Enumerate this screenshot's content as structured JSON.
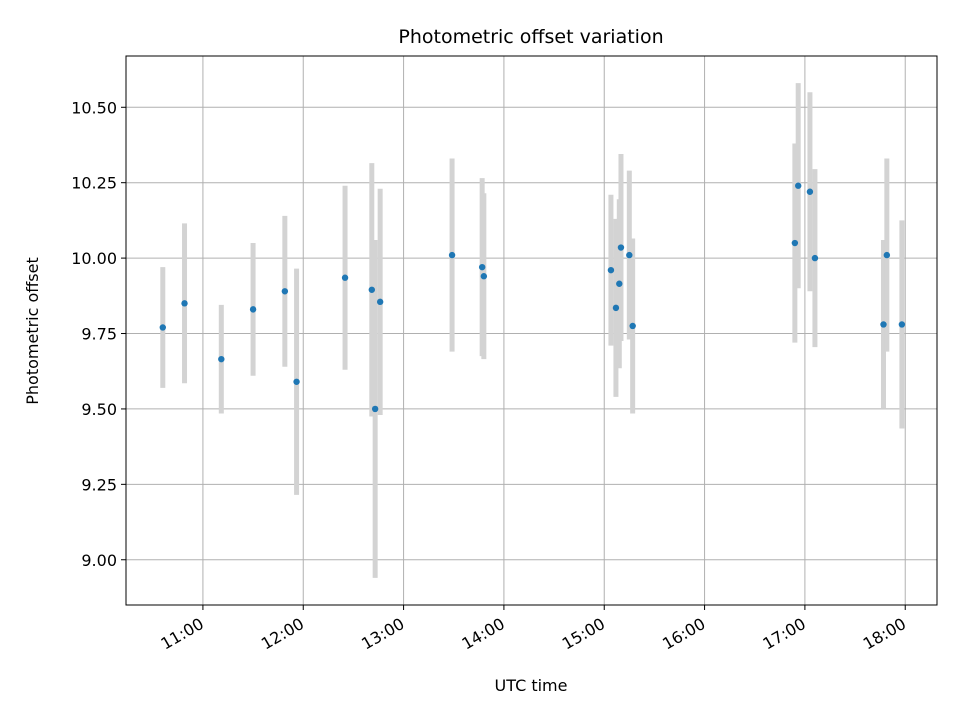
{
  "chart_data": {
    "type": "scatter",
    "title": "Photometric offset variation",
    "xlabel": "UTC time",
    "ylabel": "Photometric offset",
    "xlim": [
      "10:14",
      "18:19"
    ],
    "ylim": [
      8.85,
      10.67
    ],
    "x_ticks": [
      "11:00",
      "12:00",
      "13:00",
      "14:00",
      "15:00",
      "16:00",
      "17:00",
      "18:00"
    ],
    "y_ticks": [
      9.0,
      9.25,
      9.5,
      9.75,
      10.0,
      10.25,
      10.5
    ],
    "y_tick_labels": [
      "9.00",
      "9.25",
      "9.50",
      "9.75",
      "10.00",
      "10.25",
      "10.50"
    ],
    "grid": true,
    "colors": {
      "point": "#1f77b4",
      "errorbar": "#d3d3d3",
      "grid": "#b0b0b0"
    },
    "points": [
      {
        "x": "10:36",
        "y": 9.77,
        "err": 0.2
      },
      {
        "x": "10:49",
        "y": 9.85,
        "err": 0.265
      },
      {
        "x": "11:11",
        "y": 9.665,
        "err": 0.18
      },
      {
        "x": "11:30",
        "y": 9.83,
        "err": 0.22
      },
      {
        "x": "11:49",
        "y": 9.89,
        "err": 0.25
      },
      {
        "x": "11:56",
        "y": 9.59,
        "err": 0.375
      },
      {
        "x": "12:25",
        "y": 9.935,
        "err": 0.305
      },
      {
        "x": "12:41",
        "y": 9.895,
        "err": 0.42
      },
      {
        "x": "12:43",
        "y": 9.5,
        "err": 0.56
      },
      {
        "x": "12:46",
        "y": 9.855,
        "err": 0.375
      },
      {
        "x": "13:29",
        "y": 10.01,
        "err": 0.32
      },
      {
        "x": "13:47",
        "y": 9.97,
        "err": 0.295
      },
      {
        "x": "13:48",
        "y": 9.94,
        "err": 0.275
      },
      {
        "x": "15:04",
        "y": 9.96,
        "err": 0.25
      },
      {
        "x": "15:07",
        "y": 9.835,
        "err": 0.295
      },
      {
        "x": "15:09",
        "y": 9.915,
        "err": 0.28
      },
      {
        "x": "15:10",
        "y": 10.035,
        "err": 0.31
      },
      {
        "x": "15:15",
        "y": 10.01,
        "err": 0.28
      },
      {
        "x": "15:17",
        "y": 9.775,
        "err": 0.29
      },
      {
        "x": "16:54",
        "y": 10.05,
        "err": 0.33
      },
      {
        "x": "16:56",
        "y": 10.24,
        "err": 0.34
      },
      {
        "x": "17:03",
        "y": 10.22,
        "err": 0.33
      },
      {
        "x": "17:06",
        "y": 10.0,
        "err": 0.295
      },
      {
        "x": "17:47",
        "y": 9.78,
        "err": 0.28
      },
      {
        "x": "17:49",
        "y": 10.01,
        "err": 0.32
      },
      {
        "x": "17:58",
        "y": 9.78,
        "err": 0.345
      }
    ]
  }
}
